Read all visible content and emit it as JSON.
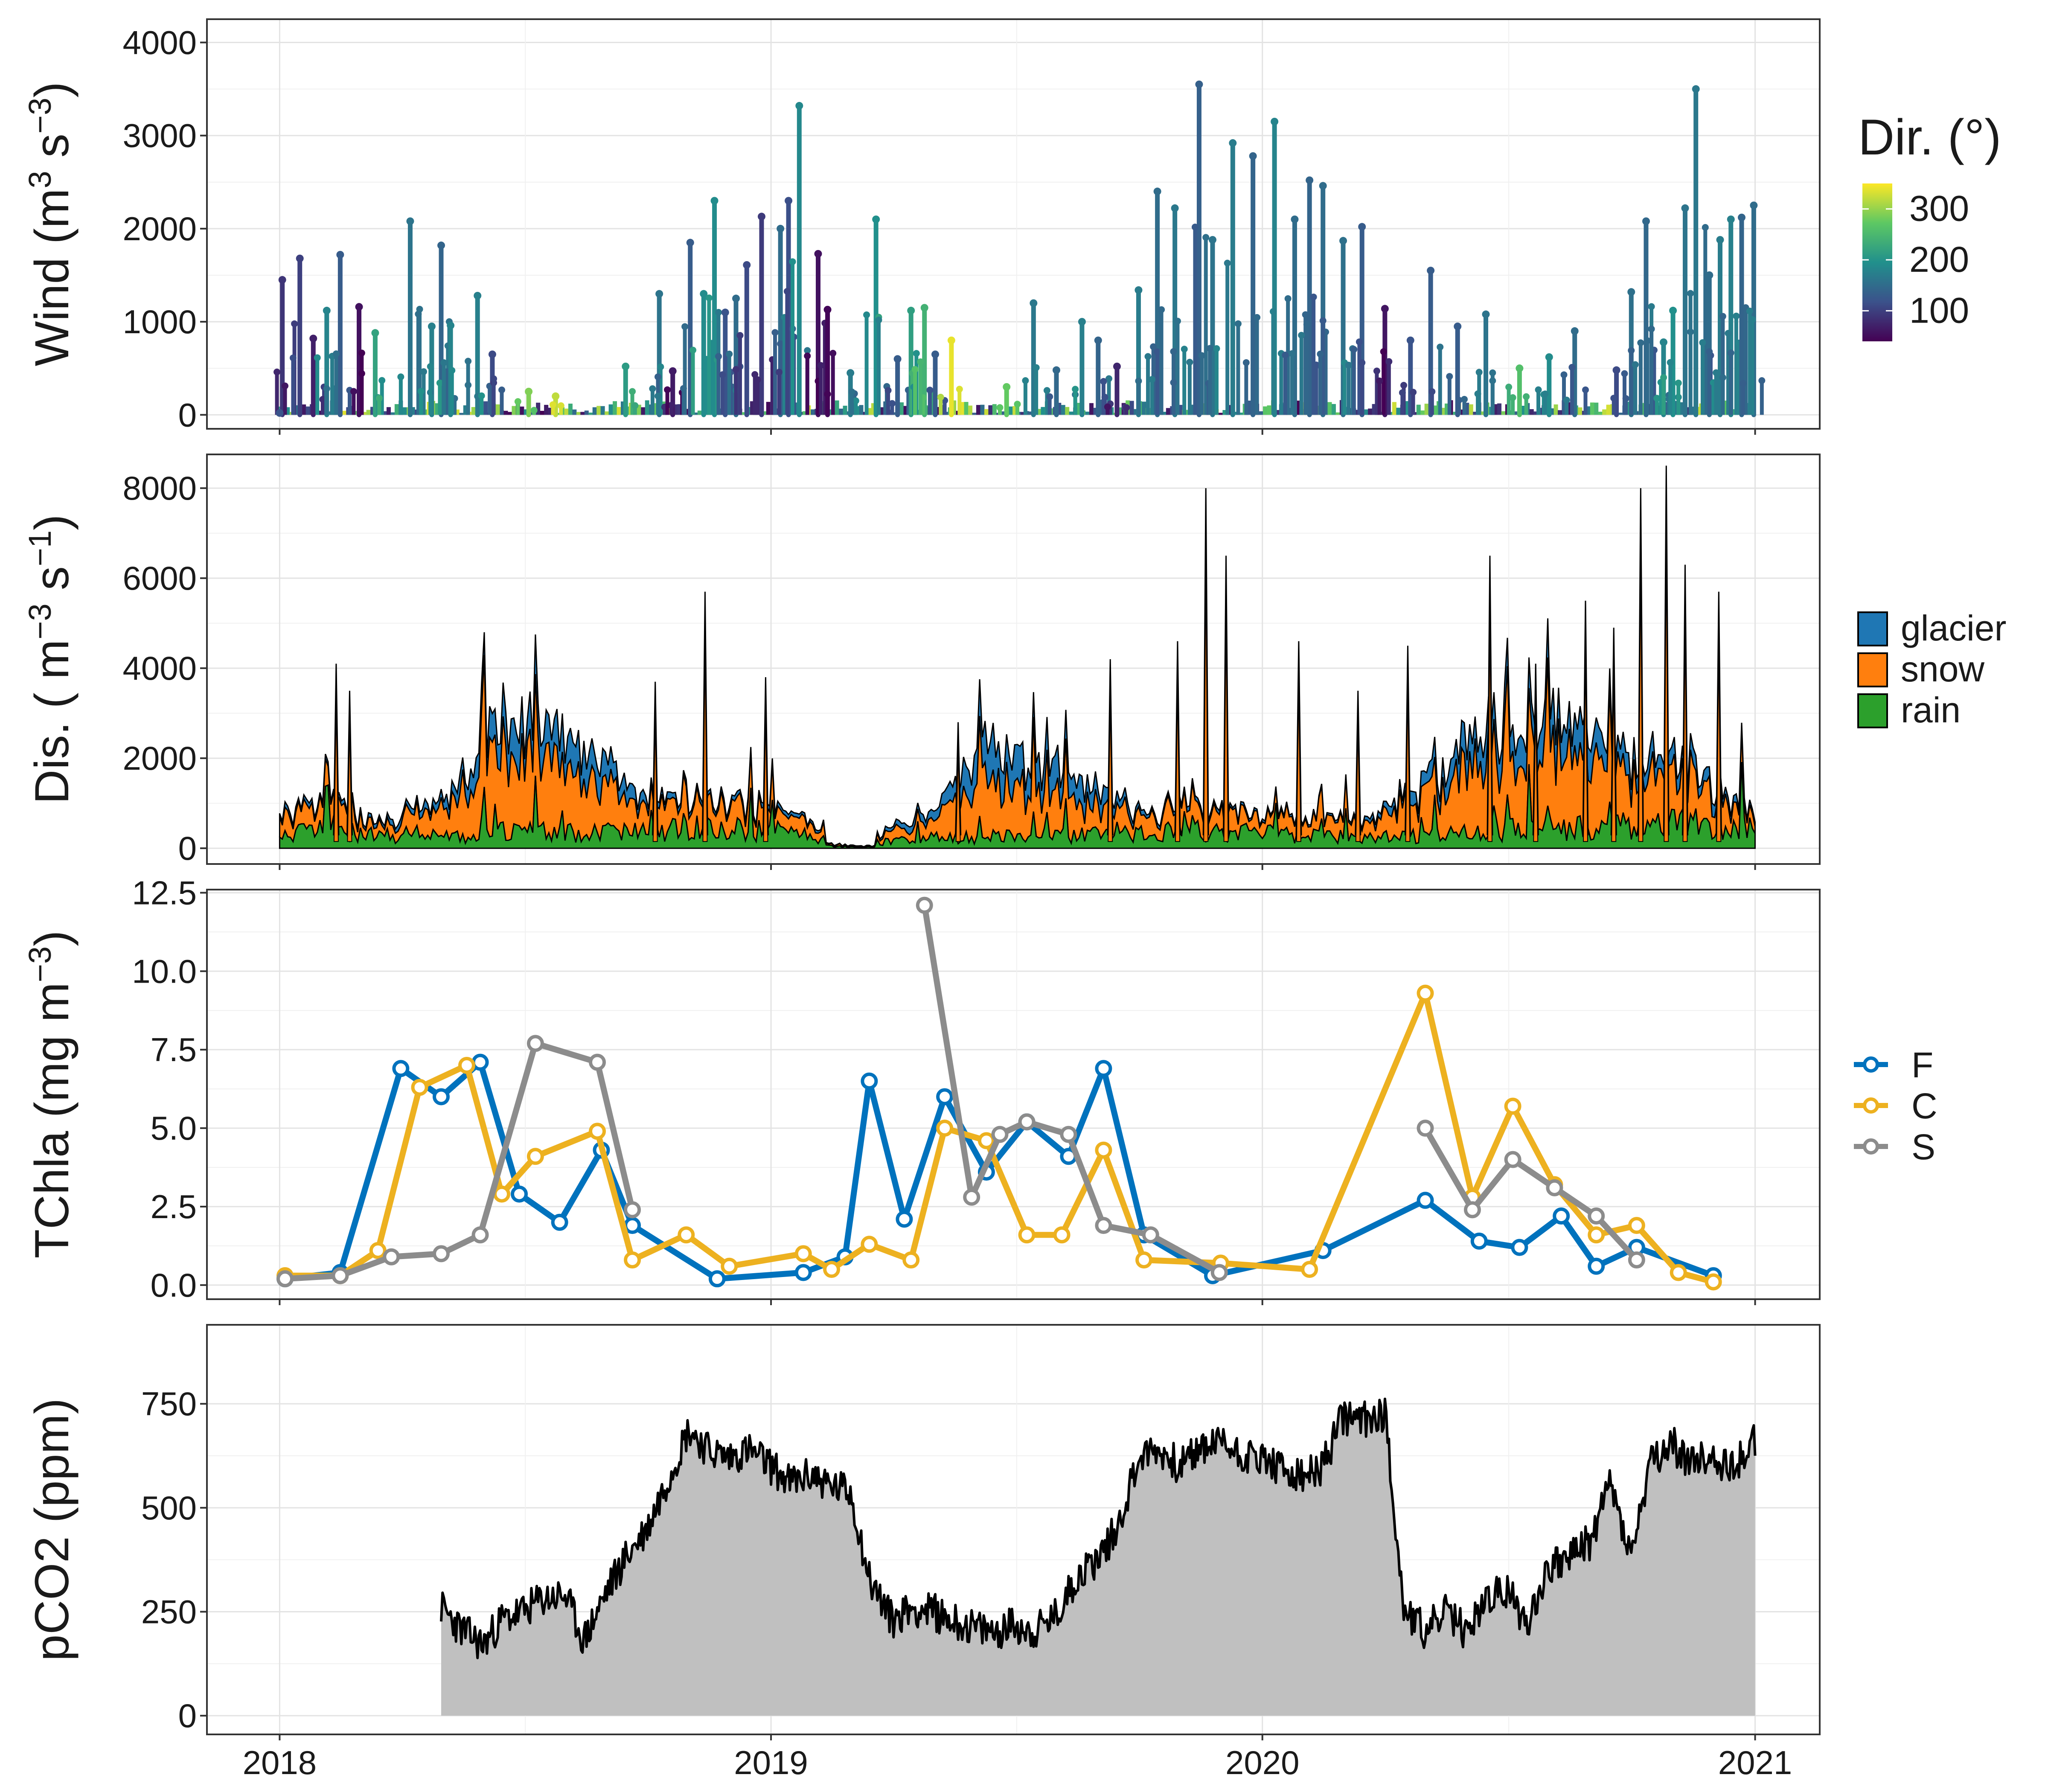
{
  "colors": {
    "glacier": "#1f77b4",
    "snow": "#ff7f0e",
    "rain": "#2ca02c",
    "F": "#0072bd",
    "C": "#edb120",
    "S": "#8c8c8c",
    "pco2_fill": "#c0c0c0",
    "viridis": [
      "#440154",
      "#3b528b",
      "#21908c",
      "#5dc863",
      "#fde725"
    ]
  },
  "x_axis": {
    "type": "date",
    "range": [
      "2017-11-08",
      "2021-02-18"
    ],
    "ticks": [
      "2018-01-01",
      "2019-01-01",
      "2020-01-01",
      "2021-01-01"
    ],
    "tick_labels": [
      "2018",
      "2019",
      "2020",
      "2021"
    ]
  },
  "chart_data": [
    {
      "type": "line",
      "id": "wind",
      "ylabel_main": "Wind (m",
      "ylabel_sup1": "3",
      "ylabel_mid": " s",
      "ylabel_sup2": "−3",
      "ylabel_end": ")",
      "ylim": [
        -150,
        4250
      ],
      "yticks": [
        0,
        1000,
        2000,
        3000,
        4000
      ],
      "ytick_labels": [
        "0",
        "1000",
        "2000",
        "3000",
        "4000"
      ],
      "legend": {
        "title": "Dir. (°)",
        "type": "colorbar",
        "range": [
          40,
          350
        ],
        "ticks": [
          "300",
          "200",
          "100"
        ]
      },
      "peaks": [
        [
          "2018-01-03",
          1450,
          90
        ],
        [
          "2018-01-16",
          1680,
          100
        ],
        [
          "2018-01-26",
          820,
          70
        ],
        [
          "2018-02-05",
          1120,
          180
        ],
        [
          "2018-02-15",
          1720,
          130
        ],
        [
          "2018-03-01",
          1160,
          55
        ],
        [
          "2018-03-13",
          880,
          220
        ],
        [
          "2018-04-08",
          2080,
          160
        ],
        [
          "2018-04-24",
          950,
          175
        ],
        [
          "2018-05-01",
          1820,
          140
        ],
        [
          "2018-05-08",
          960,
          180
        ],
        [
          "2018-05-28",
          1280,
          175
        ],
        [
          "2018-06-08",
          650,
          110
        ],
        [
          "2018-07-05",
          250,
          290
        ],
        [
          "2018-07-25",
          200,
          320
        ],
        [
          "2018-09-15",
          520,
          210
        ],
        [
          "2018-10-10",
          1300,
          160
        ],
        [
          "2018-10-20",
          470,
          65
        ],
        [
          "2018-11-02",
          1850,
          130
        ],
        [
          "2018-11-12",
          1300,
          190
        ],
        [
          "2018-11-20",
          2300,
          190
        ],
        [
          "2018-11-28",
          1100,
          120
        ],
        [
          "2018-12-06",
          1250,
          150
        ],
        [
          "2018-12-14",
          1610,
          110
        ],
        [
          "2018-12-25",
          2130,
          95
        ],
        [
          "2019-01-08",
          2000,
          150
        ],
        [
          "2019-01-14",
          2300,
          115
        ],
        [
          "2019-01-22",
          3320,
          185
        ],
        [
          "2019-02-05",
          1730,
          55
        ],
        [
          "2019-02-12",
          1130,
          45
        ],
        [
          "2019-03-01",
          450,
          170
        ],
        [
          "2019-03-20",
          2100,
          195
        ],
        [
          "2019-04-05",
          600,
          130
        ],
        [
          "2019-04-15",
          1120,
          215
        ],
        [
          "2019-04-25",
          1150,
          240
        ],
        [
          "2019-05-03",
          650,
          130
        ],
        [
          "2019-05-15",
          800,
          340
        ],
        [
          "2019-06-25",
          300,
          275
        ],
        [
          "2019-07-15",
          1200,
          165
        ],
        [
          "2019-08-01",
          480,
          145
        ],
        [
          "2019-08-20",
          1000,
          175
        ],
        [
          "2019-09-01",
          800,
          140
        ],
        [
          "2019-09-15",
          520,
          75
        ],
        [
          "2019-10-01",
          1340,
          170
        ],
        [
          "2019-10-15",
          2400,
          150
        ],
        [
          "2019-10-28",
          2220,
          165
        ],
        [
          "2019-11-15",
          3550,
          135
        ],
        [
          "2019-11-25",
          1880,
          160
        ],
        [
          "2019-12-10",
          2920,
          170
        ],
        [
          "2019-12-25",
          2780,
          140
        ],
        [
          "2020-01-10",
          3150,
          180
        ],
        [
          "2020-01-25",
          2100,
          150
        ],
        [
          "2020-02-05",
          2520,
          140
        ],
        [
          "2020-02-15",
          2460,
          150
        ],
        [
          "2020-03-01",
          1870,
          155
        ],
        [
          "2020-03-15",
          2020,
          130
        ],
        [
          "2020-04-01",
          1140,
          60
        ],
        [
          "2020-04-20",
          800,
          120
        ],
        [
          "2020-05-05",
          1550,
          130
        ],
        [
          "2020-05-25",
          950,
          130
        ],
        [
          "2020-06-15",
          1080,
          160
        ],
        [
          "2020-07-10",
          500,
          260
        ],
        [
          "2020-08-01",
          620,
          190
        ],
        [
          "2020-08-20",
          900,
          150
        ],
        [
          "2020-09-20",
          480,
          110
        ],
        [
          "2020-10-01",
          1320,
          155
        ],
        [
          "2020-10-12",
          2080,
          145
        ],
        [
          "2020-10-25",
          780,
          180
        ],
        [
          "2020-11-01",
          1120,
          195
        ],
        [
          "2020-11-10",
          2220,
          160
        ],
        [
          "2020-11-18",
          3500,
          165
        ],
        [
          "2020-11-28",
          1500,
          150
        ],
        [
          "2020-12-06",
          1880,
          170
        ],
        [
          "2020-12-14",
          2100,
          175
        ],
        [
          "2020-12-22",
          2120,
          140
        ],
        [
          "2020-12-31",
          2250,
          150
        ]
      ]
    },
    {
      "type": "area",
      "id": "discharge",
      "stacked": true,
      "ylabel_main": "Dis. ( m",
      "ylabel_sup1": "−3",
      "ylabel_mid": " s",
      "ylabel_sup2": "−1",
      "ylabel_end": ")",
      "ylim": [
        -350,
        8750
      ],
      "yticks": [
        0,
        2000,
        4000,
        6000,
        8000
      ],
      "ytick_labels": [
        "0",
        "2000",
        "4000",
        "6000",
        "8000"
      ],
      "legend": [
        "glacier",
        "snow",
        "rain"
      ],
      "series": [
        {
          "name": "rain",
          "x": [
            "2018-01-01",
            "2018-02-15",
            "2018-03-15",
            "2018-05-01",
            "2018-06-15",
            "2018-08-15",
            "2018-10-01",
            "2018-11-15",
            "2019-01-01",
            "2019-02-15",
            "2019-03-15",
            "2019-05-01",
            "2019-06-15",
            "2019-08-15",
            "2019-10-01",
            "2019-11-15",
            "2020-01-01",
            "2020-02-15",
            "2020-03-15",
            "2020-05-01",
            "2020-06-15",
            "2020-08-15",
            "2020-10-01",
            "2020-11-15",
            "2021-01-01"
          ],
          "values": [
            300,
            400,
            250,
            200,
            350,
            300,
            350,
            400,
            350,
            200,
            100,
            200,
            250,
            250,
            300,
            350,
            300,
            250,
            200,
            250,
            350,
            400,
            450,
            500,
            400
          ]
        },
        {
          "name": "snow",
          "x": [
            "2018-01-01",
            "2018-02-15",
            "2018-03-15",
            "2018-05-01",
            "2018-06-15",
            "2018-08-15",
            "2018-10-01",
            "2018-11-15",
            "2019-01-01",
            "2019-02-15",
            "2019-03-15",
            "2019-05-01",
            "2019-06-15",
            "2019-08-15",
            "2019-10-01",
            "2019-11-15",
            "2020-01-01",
            "2020-02-15",
            "2020-03-15",
            "2020-05-01",
            "2020-06-15",
            "2020-08-15",
            "2020-10-01",
            "2020-11-15",
            "2021-01-01"
          ],
          "values": [
            400,
            500,
            200,
            600,
            1800,
            1300,
            500,
            600,
            400,
            200,
            100,
            400,
            1300,
            700,
            400,
            500,
            300,
            350,
            300,
            800,
            1700,
            1600,
            1100,
            1000,
            200
          ]
        },
        {
          "name": "glacier",
          "x": [
            "2018-01-01",
            "2018-02-15",
            "2018-03-15",
            "2018-05-01",
            "2018-06-15",
            "2018-08-15",
            "2018-10-01",
            "2018-11-15",
            "2019-01-01",
            "2019-02-15",
            "2019-03-15",
            "2019-05-01",
            "2019-06-15",
            "2019-08-15",
            "2019-10-01",
            "2019-11-15",
            "2020-01-01",
            "2020-02-15",
            "2020-03-15",
            "2020-05-01",
            "2020-06-15",
            "2020-08-15",
            "2020-10-01",
            "2020-11-15",
            "2021-01-01"
          ],
          "values": [
            100,
            100,
            80,
            200,
            700,
            650,
            150,
            100,
            100,
            50,
            30,
            200,
            800,
            550,
            100,
            80,
            50,
            50,
            60,
            300,
            700,
            700,
            400,
            300,
            100
          ]
        }
      ],
      "spikes": [
        [
          "2018-02-12",
          4100
        ],
        [
          "2018-02-22",
          3500
        ],
        [
          "2018-10-07",
          3700
        ],
        [
          "2018-11-13",
          5700
        ],
        [
          "2018-12-28",
          3800
        ],
        [
          "2019-05-20",
          2800
        ],
        [
          "2019-09-10",
          4200
        ],
        [
          "2019-10-30",
          4600
        ],
        [
          "2019-11-20",
          8000
        ],
        [
          "2019-12-05",
          6500
        ],
        [
          "2020-01-28",
          4600
        ],
        [
          "2020-03-12",
          3500
        ],
        [
          "2020-04-18",
          4500
        ],
        [
          "2020-06-18",
          6500
        ],
        [
          "2020-07-22",
          4100
        ],
        [
          "2020-08-28",
          5500
        ],
        [
          "2020-09-18",
          4900
        ],
        [
          "2020-10-08",
          8000
        ],
        [
          "2020-10-27",
          8500
        ],
        [
          "2020-11-10",
          6300
        ],
        [
          "2020-12-05",
          5700
        ]
      ]
    },
    {
      "type": "line",
      "id": "tchla",
      "ylabel_main": "TChla (mg m",
      "ylabel_sup1": "",
      "ylabel_mid": "",
      "ylabel_sup2": "−3",
      "ylabel_end": ")",
      "ylim": [
        -0.45,
        12.6
      ],
      "yticks": [
        0,
        2.5,
        5,
        7.5,
        10,
        12.5
      ],
      "ytick_labels": [
        "0.0",
        "2.5",
        "5.0",
        "7.5",
        "10.0",
        "12.5"
      ],
      "legend": [
        "F",
        "C",
        "S"
      ],
      "series": [
        {
          "name": "F",
          "x": [
            "2018-01-05",
            "2018-02-15",
            "2018-04-01",
            "2018-05-01",
            "2018-05-30",
            "2018-06-28",
            "2018-07-28",
            "2018-08-28",
            "2018-09-20",
            "2018-11-22",
            "2019-01-25",
            "2019-02-25",
            "2019-03-15",
            "2019-04-10",
            "2019-05-10",
            "2019-06-10",
            "2019-07-10",
            "2019-08-10",
            "2019-09-05",
            "2019-10-05",
            "2019-11-25",
            "2020-02-15",
            "2020-05-01",
            "2020-06-10",
            "2020-07-10",
            "2020-08-10",
            "2020-09-05",
            "2020-10-05",
            "2020-12-01"
          ],
          "values": [
            0.2,
            0.4,
            6.9,
            6.0,
            7.1,
            2.9,
            2.0,
            4.3,
            1.9,
            0.2,
            0.4,
            0.9,
            6.5,
            2.1,
            6.0,
            3.6,
            5.2,
            4.1,
            6.9,
            1.6,
            0.3,
            1.1,
            2.7,
            1.4,
            1.2,
            2.2,
            0.6,
            1.2,
            0.3
          ]
        },
        {
          "name": "C",
          "x": [
            "2018-01-05",
            "2018-02-15",
            "2018-03-15",
            "2018-04-15",
            "2018-05-20",
            "2018-06-15",
            "2018-07-10",
            "2018-08-25",
            "2018-09-20",
            "2018-10-30",
            "2018-12-01",
            "2019-01-25",
            "2019-02-15",
            "2019-03-15",
            "2019-04-15",
            "2019-05-10",
            "2019-06-10",
            "2019-07-10",
            "2019-08-05",
            "2019-09-05",
            "2019-10-05",
            "2019-12-01",
            "2020-02-05",
            "2020-05-01",
            "2020-06-05",
            "2020-07-05",
            "2020-08-05",
            "2020-09-05",
            "2020-10-05",
            "2020-11-05",
            "2020-12-01"
          ],
          "values": [
            0.3,
            0.3,
            1.1,
            6.3,
            7.0,
            2.9,
            4.1,
            4.9,
            0.8,
            1.6,
            0.6,
            1.0,
            0.5,
            1.3,
            0.8,
            5.0,
            4.6,
            1.6,
            1.6,
            4.3,
            0.8,
            0.7,
            0.5,
            9.3,
            2.8,
            5.7,
            3.2,
            1.6,
            1.9,
            0.4,
            0.1
          ]
        },
        {
          "name": "S",
          "x": [
            "2018-01-05",
            "2018-02-15",
            "2018-03-25",
            "2018-05-01",
            "2018-05-30",
            "2018-07-10",
            "2018-08-25",
            "2018-09-20",
            "2019-04-25",
            "2019-05-30",
            "2019-06-20",
            "2019-07-10",
            "2019-08-10",
            "2019-09-05",
            "2019-10-10",
            "2019-11-30",
            "2020-05-01",
            "2020-06-05",
            "2020-07-05",
            "2020-08-05",
            "2020-09-05",
            "2020-10-05"
          ],
          "values": [
            0.2,
            0.3,
            0.9,
            1.0,
            1.6,
            7.7,
            7.1,
            2.4,
            12.1,
            2.8,
            4.8,
            5.2,
            4.8,
            1.9,
            1.6,
            0.4,
            5.0,
            2.4,
            4.0,
            3.1,
            2.2,
            0.8
          ]
        }
      ]
    },
    {
      "type": "area",
      "id": "pco2",
      "ylabel_main": "pCO2 (ppm)",
      "ylabel_sup1": "",
      "ylabel_mid": "",
      "ylabel_sup2": "",
      "ylabel_end": "",
      "ylim": [
        -45,
        940
      ],
      "yticks": [
        0,
        250,
        500,
        750
      ],
      "ytick_labels": [
        "0",
        "250",
        "500",
        "750"
      ],
      "x": [
        "2018-05-01",
        "2018-05-15",
        "2018-06-01",
        "2018-06-15",
        "2018-07-01",
        "2018-07-15",
        "2018-08-01",
        "2018-08-15",
        "2018-09-01",
        "2018-09-15",
        "2018-10-01",
        "2018-10-15",
        "2018-11-01",
        "2018-11-15",
        "2018-12-01",
        "2018-12-15",
        "2019-01-01",
        "2019-01-15",
        "2019-02-01",
        "2019-02-15",
        "2019-03-01",
        "2019-03-15",
        "2019-04-01",
        "2019-04-15",
        "2019-05-01",
        "2019-05-15",
        "2019-06-01",
        "2019-06-15",
        "2019-07-01",
        "2019-07-15",
        "2019-08-01",
        "2019-08-15",
        "2019-09-01",
        "2019-09-15",
        "2019-10-01",
        "2019-10-15",
        "2019-11-01",
        "2019-11-15",
        "2019-12-01",
        "2019-12-15",
        "2020-01-01",
        "2020-01-15",
        "2020-02-01",
        "2020-02-15",
        "2020-03-01",
        "2020-03-15",
        "2020-04-01",
        "2020-04-15",
        "2020-05-01",
        "2020-05-15",
        "2020-06-01",
        "2020-06-15",
        "2020-07-01",
        "2020-07-15",
        "2020-08-01",
        "2020-08-15",
        "2020-09-01",
        "2020-09-15",
        "2020-10-01",
        "2020-10-15",
        "2020-11-01",
        "2020-11-15",
        "2020-12-01",
        "2020-12-15",
        "2021-01-01"
      ],
      "values": [
        260,
        210,
        170,
        230,
        250,
        280,
        290,
        180,
        300,
        380,
        450,
        560,
        690,
        640,
        620,
        640,
        600,
        560,
        580,
        550,
        540,
        330,
        230,
        260,
        250,
        230,
        210,
        200,
        220,
        200,
        240,
        330,
        380,
        450,
        620,
        640,
        600,
        640,
        660,
        630,
        620,
        590,
        570,
        600,
        720,
        710,
        730,
        260,
        200,
        250,
        200,
        280,
        300,
        220,
        360,
        380,
        420,
        560,
        380,
        600,
        650,
        610,
        620,
        600,
        660
      ]
    }
  ]
}
